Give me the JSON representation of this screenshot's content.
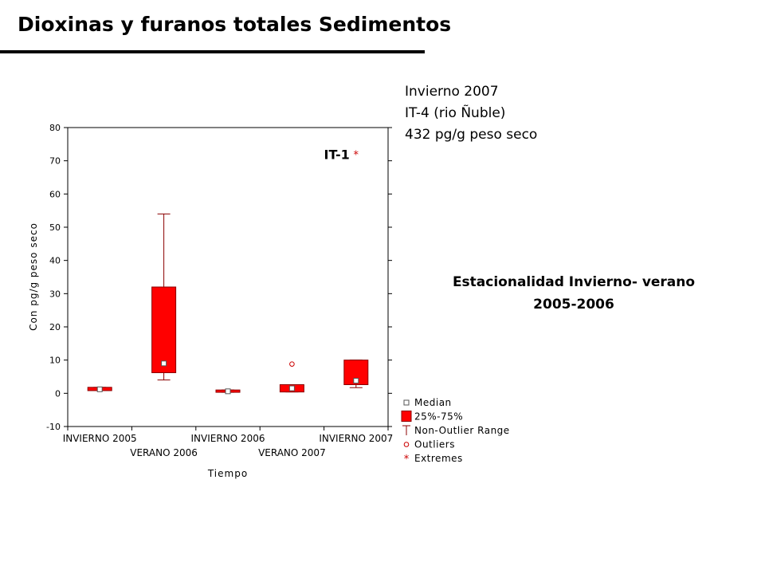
{
  "slide": {
    "title": "Dioxinas y furanos totales Sedimentos",
    "note_lines": [
      "Invierno 2007",
      "IT-4 (rio Ñuble)",
      "432 pg/g peso seco"
    ],
    "season_lines": [
      "Estacionalidad Invierno- verano",
      "2005-2006"
    ]
  },
  "chart_data": {
    "type": "boxplot",
    "title": "",
    "xlabel": "Tiempo",
    "ylabel": "Con pg/g peso seco",
    "ylim": [
      -10,
      80
    ],
    "yticks": [
      -10,
      0,
      10,
      20,
      30,
      40,
      50,
      60,
      70,
      80
    ],
    "grid": false,
    "legend_placement": "bottom-right",
    "box_color": "#ff0000",
    "categories": [
      "INVIERNO 2005",
      "VERANO 2006",
      "INVIERNO 2006",
      "VERANO 2007",
      "INVIERNO 2007"
    ],
    "boxes": [
      {
        "category": "INVIERNO 2005",
        "median": 1.2,
        "q1": 0.8,
        "q3": 1.8,
        "whisker_low": 0.8,
        "whisker_high": 1.8,
        "outliers": [],
        "extremes": []
      },
      {
        "category": "VERANO 2006",
        "median": 9,
        "q1": 6.2,
        "q3": 32,
        "whisker_low": 4,
        "whisker_high": 54,
        "outliers": [],
        "extremes": []
      },
      {
        "category": "INVIERNO 2006",
        "median": 0.6,
        "q1": 0.3,
        "q3": 1.0,
        "whisker_low": 0.3,
        "whisker_high": 1.0,
        "outliers": [],
        "extremes": []
      },
      {
        "category": "VERANO 2007",
        "median": 1.5,
        "q1": 0.4,
        "q3": 2.6,
        "whisker_low": 0.4,
        "whisker_high": 2.6,
        "outliers": [
          8.8
        ],
        "extremes": []
      },
      {
        "category": "INVIERNO 2007",
        "median": 3.8,
        "q1": 2.6,
        "q3": 10,
        "whisker_low": 1.7,
        "whisker_high": 10,
        "outliers": [],
        "extremes": [
          72
        ]
      }
    ],
    "annotations": [
      {
        "text": "IT-1",
        "category": "INVIERNO 2007",
        "y": 72
      }
    ],
    "legend": [
      "Median",
      "25%-75%",
      "Non-Outlier Range",
      "Outliers",
      "Extremes"
    ]
  }
}
